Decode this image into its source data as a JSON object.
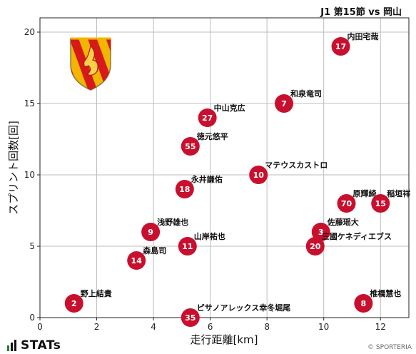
{
  "header": {
    "match": "J1 第15節 vs 岡山"
  },
  "footer": {
    "brand": "STATs",
    "credit": "© SPORTERIA"
  },
  "chart_data": {
    "type": "scatter",
    "xlabel": "走行距離[km]",
    "ylabel": "スプリント回数[回]",
    "xlim": [
      0,
      13
    ],
    "ylim": [
      0,
      21
    ],
    "xticks": [
      0,
      2,
      4,
      6,
      8,
      10,
      12
    ],
    "yticks": [
      0,
      5,
      10,
      15,
      20
    ],
    "grid": true,
    "marker_color": "#c8102e",
    "points": [
      {
        "number": "17",
        "name": "内田宅哉",
        "x": 10.6,
        "y": 19
      },
      {
        "number": "7",
        "name": "和泉竜司",
        "x": 8.6,
        "y": 15
      },
      {
        "number": "27",
        "name": "中山克広",
        "x": 5.9,
        "y": 14
      },
      {
        "number": "55",
        "name": "徳元悠平",
        "x": 5.3,
        "y": 12
      },
      {
        "number": "10",
        "name": "マテウスカストロ",
        "x": 7.7,
        "y": 10
      },
      {
        "number": "18",
        "name": "永井謙佑",
        "x": 5.1,
        "y": 9
      },
      {
        "number": "70",
        "name": "原輝綺",
        "x": 10.8,
        "y": 8
      },
      {
        "number": "15",
        "name": "稲垣祥",
        "x": 12.0,
        "y": 8
      },
      {
        "number": "9",
        "name": "浅野雄也",
        "x": 3.9,
        "y": 6
      },
      {
        "number": "3",
        "name": "佐藤瑶大",
        "x": 9.9,
        "y": 6
      },
      {
        "number": "11",
        "name": "山岸祐也",
        "x": 5.2,
        "y": 5
      },
      {
        "number": "20",
        "name": "三國ケネディエブス",
        "x": 9.7,
        "y": 5
      },
      {
        "number": "14",
        "name": "森島司",
        "x": 3.4,
        "y": 4
      },
      {
        "number": "2",
        "name": "野上結貴",
        "x": 1.2,
        "y": 1
      },
      {
        "number": "8",
        "name": "椎橋慧也",
        "x": 11.4,
        "y": 1
      },
      {
        "number": "35",
        "name": "ピサノアレックス幸冬堀尾",
        "x": 5.3,
        "y": 0
      }
    ]
  }
}
